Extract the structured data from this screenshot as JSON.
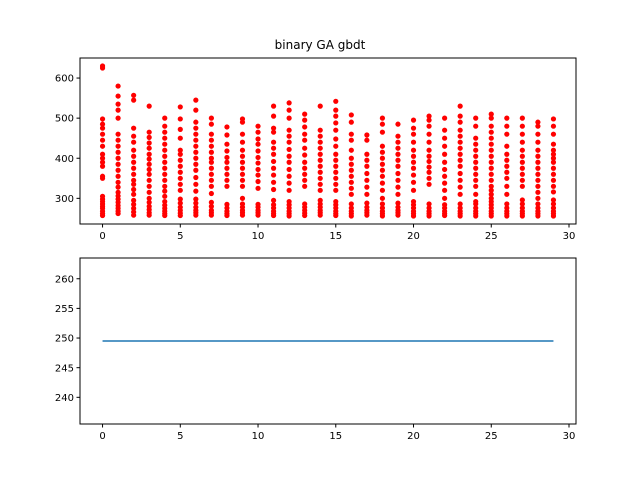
{
  "colors": {
    "scatter": "#ff0000",
    "line": "#1f77b4",
    "frame": "#000000",
    "background": "#ffffff"
  },
  "chart_data": [
    {
      "type": "scatter",
      "title": "binary GA gbdt",
      "xlabel": "",
      "ylabel": "",
      "xlim": [
        -1.45,
        30.45
      ],
      "ylim": [
        236,
        650
      ],
      "grid": false,
      "xticks": [
        "0",
        "5",
        "10",
        "15",
        "20",
        "25",
        "30"
      ],
      "yticks": [
        "300",
        "400",
        "500",
        "600"
      ],
      "columns": [
        {
          "x": 0,
          "y": [
            257,
            262,
            268,
            275,
            280,
            286,
            292,
            298,
            305,
            350,
            355,
            380,
            390,
            400,
            410,
            430,
            445,
            460,
            475,
            485,
            498,
            625,
            630
          ]
        },
        {
          "x": 1,
          "y": [
            262,
            268,
            275,
            282,
            290,
            298,
            306,
            315,
            328,
            340,
            355,
            370,
            385,
            400,
            415,
            430,
            445,
            460,
            500,
            520,
            535,
            555,
            580
          ]
        },
        {
          "x": 2,
          "y": [
            258,
            266,
            275,
            285,
            295,
            310,
            322,
            335,
            345,
            360,
            375,
            390,
            405,
            420,
            440,
            455,
            475,
            545,
            557
          ]
        },
        {
          "x": 3,
          "y": [
            258,
            264,
            272,
            280,
            290,
            300,
            315,
            330,
            345,
            360,
            372,
            385,
            398,
            410,
            425,
            438,
            452,
            465,
            530
          ]
        },
        {
          "x": 4,
          "y": [
            257,
            262,
            268,
            275,
            283,
            292,
            305,
            318,
            330,
            345,
            360,
            375,
            390,
            405,
            420,
            435,
            450,
            465,
            480,
            500
          ]
        },
        {
          "x": 5,
          "y": [
            257,
            263,
            270,
            278,
            288,
            298,
            320,
            335,
            350,
            365,
            380,
            395,
            410,
            420,
            450,
            472,
            498,
            528
          ]
        },
        {
          "x": 6,
          "y": [
            258,
            264,
            270,
            278,
            288,
            298,
            318,
            335,
            352,
            370,
            385,
            400,
            415,
            430,
            445,
            460,
            475,
            490,
            520,
            545
          ]
        },
        {
          "x": 7,
          "y": [
            258,
            264,
            270,
            280,
            290,
            312,
            330,
            345,
            360,
            375,
            390,
            400,
            415,
            430,
            445,
            460,
            485,
            500
          ]
        },
        {
          "x": 8,
          "y": [
            257,
            262,
            268,
            276,
            285,
            330,
            345,
            360,
            375,
            390,
            402,
            418,
            435,
            458,
            478
          ]
        },
        {
          "x": 9,
          "y": [
            258,
            264,
            270,
            278,
            286,
            300,
            330,
            345,
            360,
            375,
            390,
            405,
            420,
            440,
            460,
            490,
            498
          ]
        },
        {
          "x": 10,
          "y": [
            258,
            264,
            270,
            278,
            285,
            325,
            342,
            358,
            372,
            388,
            402,
            418,
            435,
            448,
            465,
            480
          ]
        },
        {
          "x": 11,
          "y": [
            257,
            262,
            268,
            276,
            284,
            295,
            322,
            340,
            358,
            375,
            392,
            410,
            425,
            440,
            465,
            475,
            505,
            530
          ]
        },
        {
          "x": 12,
          "y": [
            256,
            262,
            268,
            276,
            284,
            292,
            320,
            338,
            355,
            372,
            390,
            405,
            422,
            440,
            455,
            470,
            500,
            520,
            538
          ]
        },
        {
          "x": 13,
          "y": [
            257,
            263,
            270,
            278,
            286,
            330,
            345,
            360,
            375,
            390,
            408,
            425,
            445,
            460,
            478,
            495,
            510
          ]
        },
        {
          "x": 14,
          "y": [
            258,
            264,
            270,
            278,
            286,
            295,
            320,
            335,
            350,
            365,
            380,
            395,
            410,
            425,
            440,
            455,
            470,
            530
          ]
        },
        {
          "x": 15,
          "y": [
            257,
            262,
            268,
            276,
            284,
            292,
            320,
            335,
            350,
            365,
            380,
            395,
            410,
            430,
            448,
            470,
            488,
            505,
            520,
            542
          ]
        },
        {
          "x": 16,
          "y": [
            256,
            262,
            268,
            276,
            286,
            310,
            325,
            340,
            355,
            370,
            385,
            400,
            420,
            445,
            460,
            490,
            508
          ]
        },
        {
          "x": 17,
          "y": [
            258,
            264,
            270,
            278,
            288,
            310,
            328,
            345,
            362,
            380,
            395,
            410,
            445,
            458
          ]
        },
        {
          "x": 18,
          "y": [
            256,
            262,
            268,
            276,
            286,
            300,
            320,
            338,
            355,
            370,
            385,
            400,
            415,
            430,
            465,
            485,
            500
          ]
        },
        {
          "x": 19,
          "y": [
            258,
            264,
            270,
            278,
            288,
            310,
            328,
            345,
            362,
            380,
            395,
            410,
            425,
            440,
            455,
            485
          ]
        },
        {
          "x": 20,
          "y": [
            256,
            262,
            268,
            276,
            284,
            292,
            320,
            340,
            358,
            375,
            390,
            405,
            420,
            440,
            460,
            475,
            495
          ]
        },
        {
          "x": 21,
          "y": [
            256,
            262,
            268,
            276,
            286,
            335,
            350,
            365,
            378,
            392,
            405,
            420,
            440,
            460,
            480,
            495,
            505
          ]
        },
        {
          "x": 22,
          "y": [
            257,
            262,
            268,
            276,
            284,
            300,
            320,
            338,
            355,
            372,
            390,
            410,
            430,
            450,
            470,
            500
          ]
        },
        {
          "x": 23,
          "y": [
            256,
            262,
            268,
            276,
            286,
            310,
            328,
            345,
            362,
            380,
            395,
            410,
            425,
            440,
            455,
            470,
            490,
            505,
            530
          ]
        },
        {
          "x": 24,
          "y": [
            256,
            262,
            268,
            276,
            286,
            292,
            310,
            330,
            345,
            360,
            375,
            390,
            405,
            420,
            435,
            450,
            480,
            500
          ]
        },
        {
          "x": 25,
          "y": [
            256,
            262,
            268,
            276,
            284,
            292,
            300,
            310,
            320,
            330,
            345,
            360,
            375,
            390,
            405,
            420,
            435,
            450,
            465,
            480,
            500,
            510
          ]
        },
        {
          "x": 26,
          "y": [
            256,
            262,
            268,
            276,
            286,
            310,
            330,
            350,
            365,
            380,
            395,
            410,
            430,
            460,
            480,
            500
          ]
        },
        {
          "x": 27,
          "y": [
            256,
            262,
            268,
            276,
            286,
            296,
            330,
            345,
            360,
            375,
            390,
            405,
            420,
            440,
            460,
            480,
            500
          ]
        },
        {
          "x": 28,
          "y": [
            256,
            262,
            268,
            276,
            286,
            300,
            315,
            330,
            345,
            360,
            375,
            390,
            405,
            420,
            440,
            460,
            480,
            490
          ]
        },
        {
          "x": 29,
          "y": [
            256,
            262,
            268,
            276,
            286,
            296,
            316,
            330,
            345,
            360,
            375,
            390,
            400,
            410,
            420,
            435,
            460,
            480,
            498
          ]
        }
      ]
    },
    {
      "type": "line",
      "title": "",
      "xlabel": "",
      "ylabel": "",
      "xlim": [
        -1.45,
        30.45
      ],
      "ylim": [
        235.5,
        263.5
      ],
      "grid": false,
      "xticks": [
        "0",
        "5",
        "10",
        "15",
        "20",
        "25",
        "30"
      ],
      "yticks": [
        "240",
        "245",
        "250",
        "255",
        "260"
      ],
      "x": [
        0,
        29
      ],
      "y": [
        249.5,
        249.5
      ]
    }
  ]
}
